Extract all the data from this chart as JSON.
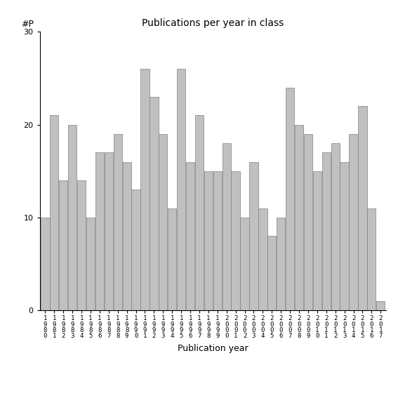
{
  "title": "Publications per year in class",
  "xlabel": "Publication year",
  "ylabel": "#P",
  "years": [
    1980,
    1981,
    1982,
    1983,
    1984,
    1985,
    1986,
    1987,
    1988,
    1989,
    1990,
    1991,
    1992,
    1993,
    1994,
    1995,
    1996,
    1997,
    1998,
    1999,
    2000,
    2001,
    2002,
    2003,
    2004,
    2005,
    2006,
    2007,
    2008,
    2009,
    2010,
    2011,
    2012,
    2013,
    2014,
    2015,
    2016,
    2017
  ],
  "values": [
    10,
    21,
    14,
    20,
    14,
    10,
    17,
    17,
    19,
    16,
    13,
    26,
    23,
    19,
    11,
    26,
    16,
    21,
    15,
    15,
    18,
    15,
    10,
    16,
    11,
    8,
    10,
    24,
    20,
    19,
    15,
    17,
    18,
    16,
    19,
    22,
    11,
    1
  ],
  "bar_color": "#c0c0c0",
  "bar_edgecolor": "#808080",
  "ylim": [
    0,
    30
  ],
  "yticks": [
    0,
    10,
    20,
    30
  ],
  "background_color": "#ffffff",
  "title_fontsize": 10,
  "axis_label_fontsize": 9,
  "tick_fontsize": 8,
  "ylabel_fontsize": 9
}
